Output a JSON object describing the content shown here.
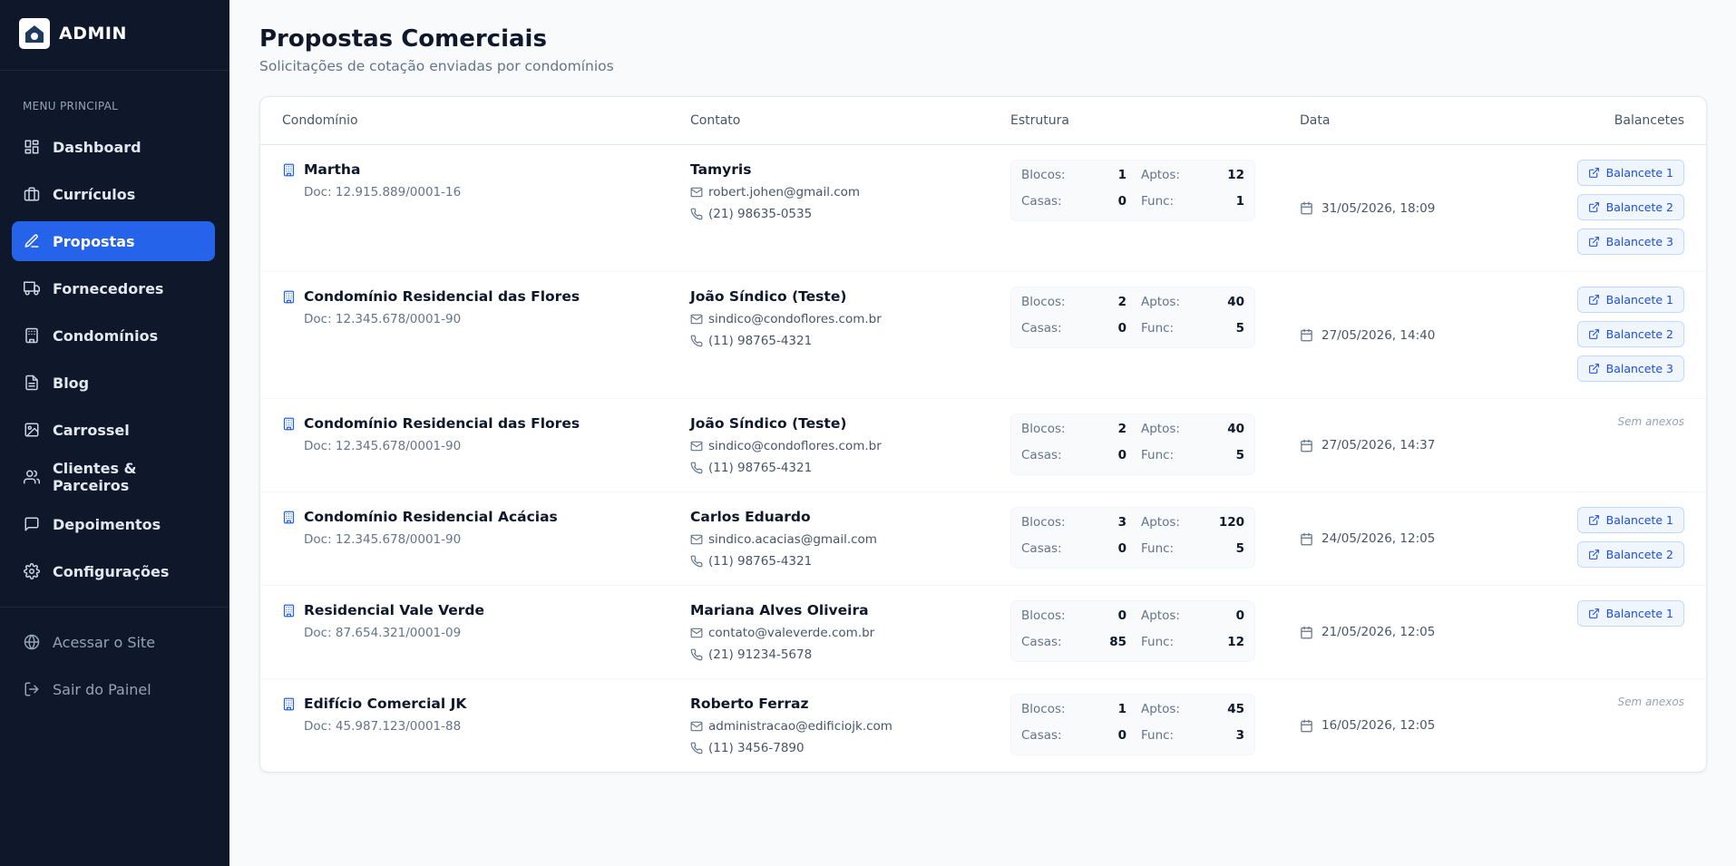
{
  "sidebar": {
    "brand": "ADMIN",
    "menu_label": "MENU PRINCIPAL",
    "active": 2,
    "items": [
      "Dashboard",
      "Currículos",
      "Propostas",
      "Fornecedores",
      "Condomínios",
      "Blog",
      "Carrossel",
      "Clientes & Parceiros",
      "Depoimentos",
      "Configurações"
    ],
    "footer": [
      "Acessar o Site",
      "Sair do Painel"
    ]
  },
  "header": {
    "title": "Propostas Comerciais",
    "subtitle": "Solicitações de cotação enviadas por condomínios"
  },
  "table": {
    "columns": [
      "Condomínio",
      "Contato",
      "Estrutura",
      "Data",
      "Balancetes"
    ],
    "structure_labels": {
      "blocos": "Blocos:",
      "aptos": "Aptos:",
      "casas": "Casas:",
      "func": "Func:"
    },
    "rows": [
      {
        "name": "Martha",
        "doc": "Doc: 12.915.889/0001-16",
        "contact": "Tamyris",
        "email": "robert.johen@gmail.com",
        "phone": "(21) 98635-0535",
        "blocos": 1,
        "aptos": 12,
        "casas": 0,
        "func": 1,
        "date": "31/05/2026, 18:09",
        "balancetes": [
          "Balancete 1",
          "Balancete 2",
          "Balancete 3"
        ]
      },
      {
        "name": "Condomínio Residencial das Flores",
        "doc": "Doc: 12.345.678/0001-90",
        "contact": "João Síndico (Teste)",
        "email": "sindico@condoflores.com.br",
        "phone": "(11) 98765-4321",
        "blocos": 2,
        "aptos": 40,
        "casas": 0,
        "func": 5,
        "date": "27/05/2026, 14:40",
        "balancetes": [
          "Balancete 1",
          "Balancete 2",
          "Balancete 3"
        ]
      },
      {
        "name": "Condomínio Residencial das Flores",
        "doc": "Doc: 12.345.678/0001-90",
        "contact": "João Síndico (Teste)",
        "email": "sindico@condoflores.com.br",
        "phone": "(11) 98765-4321",
        "blocos": 2,
        "aptos": 40,
        "casas": 0,
        "func": 5,
        "date": "27/05/2026, 14:37",
        "balancetes": [],
        "no_attachments": "Sem anexos"
      },
      {
        "name": "Condomínio Residencial Acácias",
        "doc": "Doc: 12.345.678/0001-90",
        "contact": "Carlos Eduardo",
        "email": "sindico.acacias@gmail.com",
        "phone": "(11) 98765-4321",
        "blocos": 3,
        "aptos": 120,
        "casas": 0,
        "func": 5,
        "date": "24/05/2026, 12:05",
        "balancetes": [
          "Balancete 1",
          "Balancete 2"
        ]
      },
      {
        "name": "Residencial Vale Verde",
        "doc": "Doc: 87.654.321/0001-09",
        "contact": "Mariana Alves Oliveira",
        "email": "contato@valeverde.com.br",
        "phone": "(21) 91234-5678",
        "blocos": 0,
        "aptos": 0,
        "casas": 85,
        "func": 12,
        "date": "21/05/2026, 12:05",
        "balancetes": [
          "Balancete 1"
        ]
      },
      {
        "name": "Edifício Comercial JK",
        "doc": "Doc: 45.987.123/0001-88",
        "contact": "Roberto Ferraz",
        "email": "administracao@edificiojk.com",
        "phone": "(11) 3456-7890",
        "blocos": 1,
        "aptos": 45,
        "casas": 0,
        "func": 3,
        "date": "16/05/2026, 12:05",
        "balancetes": [],
        "no_attachments": "Sem anexos"
      }
    ]
  }
}
